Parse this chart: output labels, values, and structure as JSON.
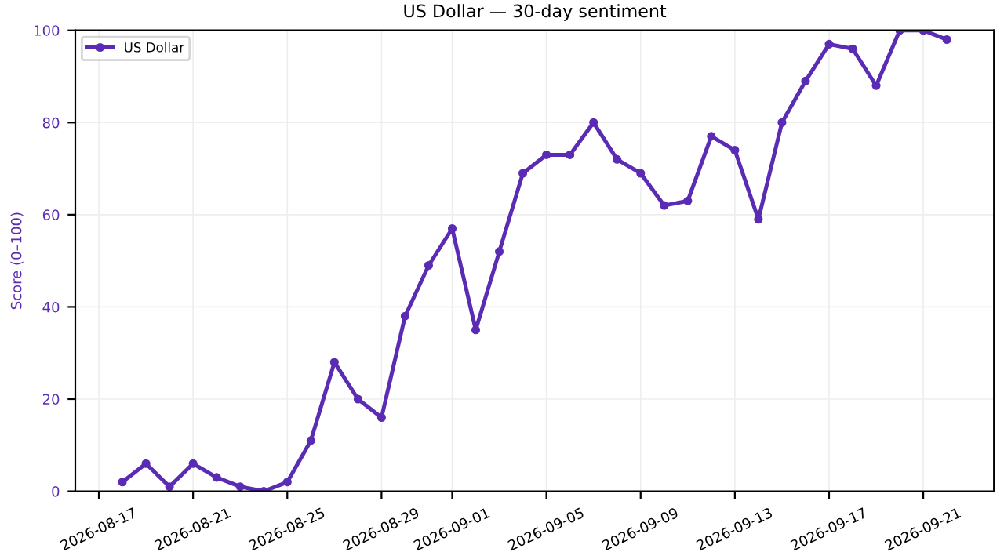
{
  "chart_data": {
    "type": "line",
    "title": "US Dollar — 30-day sentiment",
    "ylabel": "Score (0–100)",
    "x": [
      "2026-08-18",
      "2026-08-19",
      "2026-08-20",
      "2026-08-21",
      "2026-08-22",
      "2026-08-23",
      "2026-08-24",
      "2026-08-25",
      "2026-08-26",
      "2026-08-27",
      "2026-08-28",
      "2026-08-29",
      "2026-08-30",
      "2026-08-31",
      "2026-09-01",
      "2026-09-02",
      "2026-09-03",
      "2026-09-04",
      "2026-09-05",
      "2026-09-06",
      "2026-09-07",
      "2026-09-08",
      "2026-09-09",
      "2026-09-10",
      "2026-09-11",
      "2026-09-12",
      "2026-09-13",
      "2026-09-14",
      "2026-09-15",
      "2026-09-16",
      "2026-09-17",
      "2026-09-18",
      "2026-09-19",
      "2026-09-20",
      "2026-09-21",
      "2026-09-22"
    ],
    "series": [
      {
        "name": "US Dollar",
        "color": "#5a2bb3",
        "values": [
          2,
          6,
          1,
          6,
          3,
          1,
          0,
          2,
          11,
          28,
          20,
          16,
          38,
          49,
          57,
          35,
          52,
          69,
          73,
          73,
          80,
          72,
          69,
          62,
          63,
          77,
          74,
          59,
          80,
          89,
          97,
          96,
          88,
          100,
          100,
          98
        ]
      }
    ],
    "xlim": [
      "2026-08-16",
      "2026-09-24"
    ],
    "xticks": [
      {
        "value": "2026-08-17",
        "label": "2026-08-17"
      },
      {
        "value": "2026-08-21",
        "label": "2026-08-21"
      },
      {
        "value": "2026-08-25",
        "label": "2026-08-25"
      },
      {
        "value": "2026-08-29",
        "label": "2026-08-29"
      },
      {
        "value": "2026-09-01",
        "label": "2026-09-01"
      },
      {
        "value": "2026-09-05",
        "label": "2026-09-05"
      },
      {
        "value": "2026-09-09",
        "label": "2026-09-09"
      },
      {
        "value": "2026-09-13",
        "label": "2026-09-13"
      },
      {
        "value": "2026-09-17",
        "label": "2026-09-17"
      },
      {
        "value": "2026-09-21",
        "label": "2026-09-21"
      }
    ],
    "ylim": [
      0,
      100
    ],
    "yticks": [
      0,
      20,
      40,
      60,
      80,
      100
    ],
    "grid": true,
    "legend": "top left",
    "marker": "circle",
    "line_style": "solid"
  }
}
